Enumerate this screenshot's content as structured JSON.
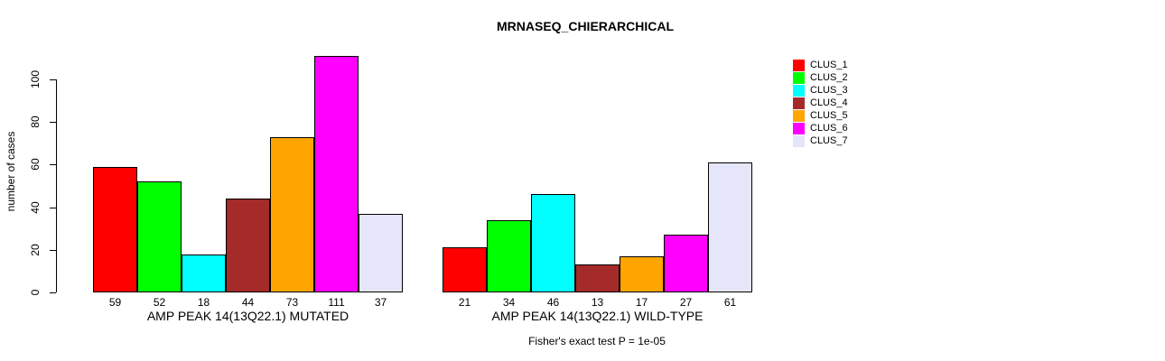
{
  "title": "MRNASEQ_CHIERARCHICAL",
  "chart_data": {
    "type": "bar",
    "title": "MRNASEQ_CHIERARCHICAL",
    "ylabel": "number of cases",
    "xlabel": "",
    "ylim": [
      0,
      115
    ],
    "yticks": [
      0,
      20,
      40,
      60,
      80,
      100
    ],
    "grid": false,
    "legend_position": "top-right-outside",
    "bar_value_labels": true,
    "categories": [
      "AMP PEAK 14(13Q22.1) MUTATED",
      "AMP PEAK 14(13Q22.1) WILD-TYPE"
    ],
    "series": [
      {
        "name": "CLUS_1",
        "color": "#FF0000",
        "values": [
          59,
          21
        ]
      },
      {
        "name": "CLUS_2",
        "color": "#00FF00",
        "values": [
          52,
          34
        ]
      },
      {
        "name": "CLUS_3",
        "color": "#00FFFF",
        "values": [
          18,
          46
        ]
      },
      {
        "name": "CLUS_4",
        "color": "#A52A2A",
        "values": [
          44,
          13
        ]
      },
      {
        "name": "CLUS_5",
        "color": "#FFA500",
        "values": [
          73,
          17
        ]
      },
      {
        "name": "CLUS_6",
        "color": "#FF00FF",
        "values": [
          111,
          27
        ]
      },
      {
        "name": "CLUS_7",
        "color": "#E6E6FA",
        "values": [
          37,
          61
        ]
      }
    ],
    "annotation": "Fisher's exact test P = 1e-05"
  },
  "legend": {
    "items": [
      {
        "label": "CLUS_1",
        "color": "#FF0000"
      },
      {
        "label": "CLUS_2",
        "color": "#00FF00"
      },
      {
        "label": "CLUS_3",
        "color": "#00FFFF"
      },
      {
        "label": "CLUS_4",
        "color": "#A52A2A"
      },
      {
        "label": "CLUS_5",
        "color": "#FFA500"
      },
      {
        "label": "CLUS_6",
        "color": "#FF00FF"
      },
      {
        "label": "CLUS_7",
        "color": "#E6E6FA"
      }
    ]
  },
  "footer": {
    "annotation": "Fisher's exact test P = 1e-05"
  }
}
